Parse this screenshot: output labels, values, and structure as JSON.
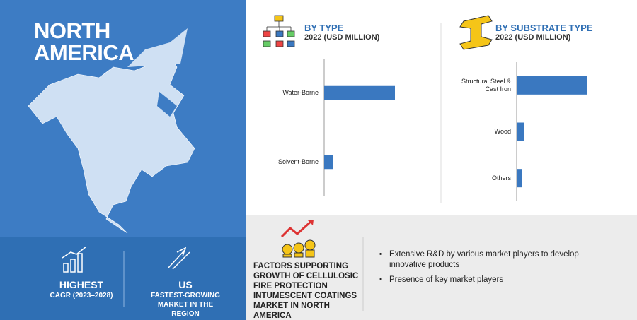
{
  "region": {
    "title": "NORTH AMERICA"
  },
  "highlights": [
    {
      "value": "HIGHEST",
      "label": "CAGR (2023–2028)"
    },
    {
      "value": "US",
      "label": "FASTEST-GROWING MARKET IN THE REGION"
    }
  ],
  "chart_data": [
    {
      "type": "bar",
      "orientation": "horizontal",
      "title": "BY TYPE",
      "subtitle": "2022 (USD MILLION)",
      "categories": [
        "Water-Borne",
        "Solvent-Borne"
      ],
      "values": [
        100,
        12
      ],
      "color": "#3a78c0"
    },
    {
      "type": "bar",
      "orientation": "horizontal",
      "title": "BY SUBSTRATE TYPE",
      "subtitle": "2022 (USD MILLION)",
      "categories": [
        "Structural Steel & Cast Iron",
        "Wood",
        "Others"
      ],
      "values": [
        100,
        11,
        7
      ],
      "color": "#3a78c0"
    }
  ],
  "factors": {
    "title": "FACTORS SUPPORTING GROWTH OF CELLULOSIC FIRE PROTECTION INTUMESCENT COATINGS MARKET IN NORTH AMERICA",
    "items": [
      "Extensive R&D by various market players to develop innovative products",
      "Presence of key market players"
    ]
  }
}
